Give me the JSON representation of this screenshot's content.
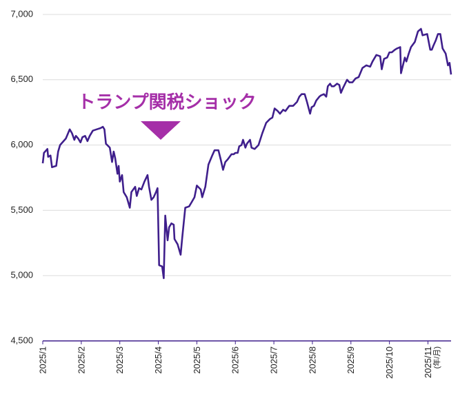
{
  "chart_data": {
    "type": "line",
    "color": "#3f1f8c",
    "annotation": "トランプ関税ショック",
    "annotation_color": "#a52fa8",
    "x_label": "(年/月)",
    "xlim": [
      1,
      11.6
    ],
    "xticks": [
      {
        "value": 1,
        "label": "2025/1"
      },
      {
        "value": 2,
        "label": "2025/2"
      },
      {
        "value": 3,
        "label": "2025/3"
      },
      {
        "value": 4,
        "label": "2025/4"
      },
      {
        "value": 5,
        "label": "2025/5"
      },
      {
        "value": 6,
        "label": "2025/6"
      },
      {
        "value": 7,
        "label": "2025/7"
      },
      {
        "value": 8,
        "label": "2025/8"
      },
      {
        "value": 9,
        "label": "2025/9"
      },
      {
        "value": 10,
        "label": "2025/10"
      },
      {
        "value": 11,
        "label": "2025/11"
      }
    ],
    "ylim": [
      4500,
      7000
    ],
    "yticks": [
      {
        "value": 4500,
        "label": "4,500"
      },
      {
        "value": 5000,
        "label": "5,000"
      },
      {
        "value": 5500,
        "label": "5,500"
      },
      {
        "value": 6000,
        "label": "6,000"
      },
      {
        "value": 6500,
        "label": "6,500"
      },
      {
        "value": 7000,
        "label": "7,000"
      }
    ],
    "grid": true,
    "x": [
      1.0,
      1.03,
      1.12,
      1.14,
      1.2,
      1.24,
      1.35,
      1.4,
      1.45,
      1.6,
      1.7,
      1.76,
      1.82,
      1.86,
      1.92,
      1.98,
      2.03,
      2.1,
      2.16,
      2.22,
      2.3,
      2.4,
      2.5,
      2.56,
      2.6,
      2.64,
      2.74,
      2.8,
      2.84,
      2.88,
      2.94,
      2.97,
      3.0,
      3.06,
      3.1,
      3.18,
      3.26,
      3.3,
      3.4,
      3.44,
      3.5,
      3.56,
      3.64,
      3.72,
      3.76,
      3.82,
      3.88,
      3.94,
      3.98,
      4.02,
      4.1,
      4.14,
      4.18,
      4.24,
      4.28,
      4.34,
      4.4,
      4.42,
      4.5,
      4.58,
      4.62,
      4.7,
      4.8,
      4.86,
      4.94,
      5.0,
      5.1,
      5.14,
      5.22,
      5.3,
      5.4,
      5.46,
      5.56,
      5.62,
      5.68,
      5.74,
      5.8,
      5.9,
      5.96,
      6.0,
      6.06,
      6.1,
      6.16,
      6.2,
      6.26,
      6.3,
      6.38,
      6.42,
      6.5,
      6.6,
      6.7,
      6.8,
      6.9,
      6.96,
      7.02,
      7.1,
      7.16,
      7.24,
      7.3,
      7.4,
      7.5,
      7.6,
      7.66,
      7.72,
      7.8,
      7.86,
      7.94,
      7.98,
      8.04,
      8.1,
      8.18,
      8.22,
      8.3,
      8.36,
      8.4,
      8.46,
      8.5,
      8.56,
      8.64,
      8.7,
      8.74,
      8.8,
      8.9,
      8.96,
      9.04,
      9.12,
      9.2,
      9.3,
      9.4,
      9.5,
      9.56,
      9.66,
      9.76,
      9.8,
      9.86,
      9.94,
      10.0,
      10.06,
      10.14,
      10.2,
      10.28,
      10.3,
      10.4,
      10.44,
      10.5,
      10.56,
      10.66,
      10.74,
      10.82,
      10.86,
      10.98,
      11.06,
      11.1,
      11.14,
      11.2,
      11.26,
      11.32,
      11.38,
      11.46,
      11.52,
      11.56,
      11.6
    ],
    "values": [
      5860,
      5940,
      5970,
      5910,
      5920,
      5830,
      5840,
      5950,
      6000,
      6050,
      6120,
      6090,
      6040,
      6070,
      6050,
      6020,
      6060,
      6070,
      6030,
      6070,
      6110,
      6120,
      6130,
      6140,
      6120,
      6010,
      5980,
      5870,
      5950,
      5900,
      5780,
      5840,
      5720,
      5770,
      5640,
      5600,
      5520,
      5640,
      5680,
      5610,
      5670,
      5660,
      5720,
      5770,
      5680,
      5580,
      5600,
      5640,
      5670,
      5080,
      5070,
      4980,
      5460,
      5270,
      5370,
      5400,
      5390,
      5280,
      5240,
      5160,
      5290,
      5520,
      5530,
      5560,
      5600,
      5690,
      5660,
      5600,
      5680,
      5850,
      5920,
      5960,
      5960,
      5890,
      5810,
      5870,
      5890,
      5930,
      5930,
      5940,
      5940,
      5990,
      6000,
      6040,
      5980,
      6010,
      6040,
      5980,
      5970,
      6000,
      6090,
      6170,
      6200,
      6210,
      6280,
      6260,
      6240,
      6270,
      6260,
      6300,
      6300,
      6330,
      6370,
      6390,
      6390,
      6330,
      6240,
      6290,
      6300,
      6340,
      6370,
      6380,
      6390,
      6370,
      6450,
      6470,
      6450,
      6450,
      6470,
      6460,
      6400,
      6440,
      6500,
      6480,
      6480,
      6510,
      6520,
      6590,
      6610,
      6600,
      6640,
      6690,
      6680,
      6580,
      6660,
      6670,
      6710,
      6710,
      6730,
      6740,
      6750,
      6550,
      6670,
      6640,
      6700,
      6750,
      6790,
      6870,
      6890,
      6840,
      6850,
      6730,
      6730,
      6760,
      6800,
      6850,
      6850,
      6740,
      6700,
      6610,
      6630,
      6540
    ]
  }
}
